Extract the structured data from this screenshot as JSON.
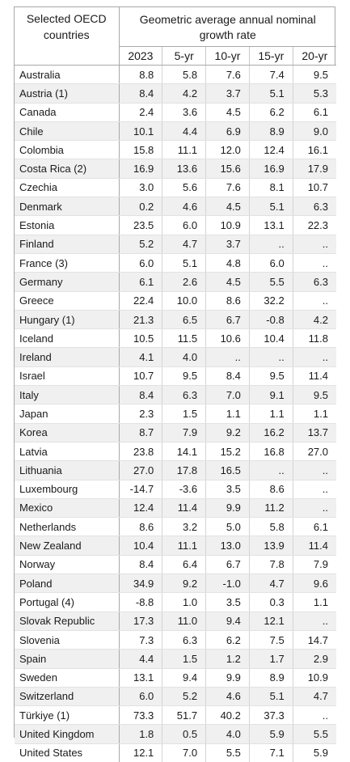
{
  "header": {
    "country_col": "Selected OECD countries",
    "group_label": "Geometric average annual nominal growth rate",
    "years": [
      "2023",
      "5-yr",
      "10-yr",
      "15-yr",
      "20-yr"
    ]
  },
  "rows": [
    {
      "country": "Australia",
      "values": [
        "8.8",
        "5.8",
        "7.6",
        "7.4",
        "9.5"
      ]
    },
    {
      "country": "Austria (1)",
      "values": [
        "8.4",
        "4.2",
        "3.7",
        "5.1",
        "5.3"
      ]
    },
    {
      "country": "Canada",
      "values": [
        "2.4",
        "3.6",
        "4.5",
        "6.2",
        "6.1"
      ]
    },
    {
      "country": "Chile",
      "values": [
        "10.1",
        "4.4",
        "6.9",
        "8.9",
        "9.0"
      ]
    },
    {
      "country": "Colombia",
      "values": [
        "15.8",
        "11.1",
        "12.0",
        "12.4",
        "16.1"
      ]
    },
    {
      "country": "Costa Rica (2)",
      "values": [
        "16.9",
        "13.6",
        "15.6",
        "16.9",
        "17.9"
      ]
    },
    {
      "country": "Czechia",
      "values": [
        "3.0",
        "5.6",
        "7.6",
        "8.1",
        "10.7"
      ]
    },
    {
      "country": "Denmark",
      "values": [
        "0.2",
        "4.6",
        "4.5",
        "5.1",
        "6.3"
      ]
    },
    {
      "country": "Estonia",
      "values": [
        "23.5",
        "6.0",
        "10.9",
        "13.1",
        "22.3"
      ]
    },
    {
      "country": "Finland",
      "values": [
        "5.2",
        "4.7",
        "3.7",
        "..",
        ".."
      ]
    },
    {
      "country": "France (3)",
      "values": [
        "6.0",
        "5.1",
        "4.8",
        "6.0",
        ".."
      ]
    },
    {
      "country": "Germany",
      "values": [
        "6.1",
        "2.6",
        "4.5",
        "5.5",
        "6.3"
      ]
    },
    {
      "country": "Greece",
      "values": [
        "22.4",
        "10.0",
        "8.6",
        "32.2",
        ".."
      ]
    },
    {
      "country": "Hungary (1)",
      "values": [
        "21.3",
        "6.5",
        "6.7",
        "-0.8",
        "4.2"
      ]
    },
    {
      "country": "Iceland",
      "values": [
        "10.5",
        "11.5",
        "10.6",
        "10.4",
        "11.8"
      ]
    },
    {
      "country": "Ireland",
      "values": [
        "4.1",
        "4.0",
        "..",
        "..",
        ".."
      ]
    },
    {
      "country": "Israel",
      "values": [
        "10.7",
        "9.5",
        "8.4",
        "9.5",
        "11.4"
      ]
    },
    {
      "country": "Italy",
      "values": [
        "8.4",
        "6.3",
        "7.0",
        "9.1",
        "9.5"
      ]
    },
    {
      "country": "Japan",
      "values": [
        "2.3",
        "1.5",
        "1.1",
        "1.1",
        "1.1"
      ]
    },
    {
      "country": "Korea",
      "values": [
        "8.7",
        "7.9",
        "9.2",
        "16.2",
        "13.7"
      ]
    },
    {
      "country": "Latvia",
      "values": [
        "23.8",
        "14.1",
        "15.2",
        "16.8",
        "27.0"
      ]
    },
    {
      "country": "Lithuania",
      "values": [
        "27.0",
        "17.8",
        "16.5",
        "..",
        ".."
      ]
    },
    {
      "country": "Luxembourg",
      "values": [
        "-14.7",
        "-3.6",
        "3.5",
        "8.6",
        ".."
      ]
    },
    {
      "country": "Mexico",
      "values": [
        "12.4",
        "11.4",
        "9.9",
        "11.2",
        ".."
      ]
    },
    {
      "country": "Netherlands",
      "values": [
        "8.6",
        "3.2",
        "5.0",
        "5.8",
        "6.1"
      ]
    },
    {
      "country": "New Zealand",
      "values": [
        "10.4",
        "11.1",
        "13.0",
        "13.9",
        "11.4"
      ]
    },
    {
      "country": "Norway",
      "values": [
        "8.4",
        "6.4",
        "6.7",
        "7.8",
        "7.9"
      ]
    },
    {
      "country": "Poland",
      "values": [
        "34.9",
        "9.2",
        "-1.0",
        "4.7",
        "9.6"
      ]
    },
    {
      "country": "Portugal (4)",
      "values": [
        "-8.8",
        "1.0",
        "3.5",
        "0.3",
        "1.1"
      ]
    },
    {
      "country": "Slovak Republic",
      "values": [
        "17.3",
        "11.0",
        "9.4",
        "12.1",
        ".."
      ]
    },
    {
      "country": "Slovenia",
      "values": [
        "7.3",
        "6.3",
        "6.2",
        "7.5",
        "14.7"
      ]
    },
    {
      "country": "Spain",
      "values": [
        "4.4",
        "1.5",
        "1.2",
        "1.7",
        "2.9"
      ]
    },
    {
      "country": "Sweden",
      "values": [
        "13.1",
        "9.4",
        "9.9",
        "8.9",
        "10.9"
      ]
    },
    {
      "country": "Switzerland",
      "values": [
        "6.0",
        "5.2",
        "4.6",
        "5.1",
        "4.7"
      ]
    },
    {
      "country": "Türkiye (1)",
      "values": [
        "73.3",
        "51.7",
        "40.2",
        "37.3",
        ".."
      ]
    },
    {
      "country": "United Kingdom",
      "values": [
        "1.8",
        "0.5",
        "4.0",
        "5.9",
        "5.5"
      ]
    },
    {
      "country": "United States",
      "values": [
        "12.1",
        "7.0",
        "5.5",
        "7.1",
        "5.9"
      ]
    }
  ],
  "colors": {
    "row_shade": "#f0f0f0",
    "border": "#a8a8a8"
  }
}
